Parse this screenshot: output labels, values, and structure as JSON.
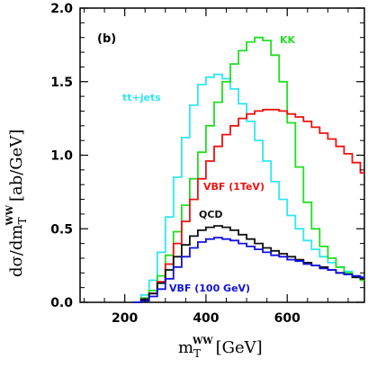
{
  "chart_data": {
    "type": "line",
    "panel_label": "(b)",
    "xlabel": {
      "main": "m",
      "sub": "T",
      "sup": "WW",
      "unit": "[GeV]"
    },
    "ylabel": {
      "prefix": "dσ/dm",
      "sub": "T",
      "sup": "WW",
      "unit": "[ab/GeV]"
    },
    "xlim": [
      90,
      790
    ],
    "ylim": [
      0.0,
      2.0
    ],
    "xticks": [
      200,
      400,
      600
    ],
    "yticks": [
      0.0,
      0.5,
      1.0,
      1.5,
      2.0
    ],
    "ytick_labels": [
      "0.0",
      "0.5",
      "1.0",
      "1.5",
      "2.0"
    ],
    "bin_width": 20,
    "series": [
      {
        "name": "tt+jets",
        "color": "#2fe6f2",
        "x": [
          220,
          240,
          260,
          280,
          300,
          320,
          340,
          360,
          380,
          400,
          420,
          440,
          460,
          480,
          500,
          520,
          540,
          560,
          580,
          600,
          620,
          640,
          660,
          680,
          700,
          720,
          740,
          760,
          780
        ],
        "y": [
          0.0,
          0.05,
          0.15,
          0.34,
          0.58,
          0.85,
          1.12,
          1.34,
          1.48,
          1.53,
          1.55,
          1.52,
          1.45,
          1.35,
          1.23,
          1.1,
          0.96,
          0.82,
          0.7,
          0.59,
          0.5,
          0.42,
          0.36,
          0.31,
          0.27,
          0.24,
          0.21,
          0.18,
          0.16
        ]
      },
      {
        "name": "KK",
        "color": "#22dd22",
        "x": [
          220,
          240,
          260,
          280,
          300,
          320,
          340,
          360,
          380,
          400,
          420,
          440,
          460,
          480,
          500,
          520,
          540,
          560,
          580,
          600,
          620,
          640,
          660,
          680,
          700,
          720,
          740,
          760,
          780
        ],
        "y": [
          0.0,
          0.03,
          0.08,
          0.18,
          0.32,
          0.48,
          0.66,
          0.84,
          1.02,
          1.2,
          1.36,
          1.5,
          1.62,
          1.71,
          1.77,
          1.8,
          1.78,
          1.68,
          1.5,
          1.22,
          0.92,
          0.68,
          0.5,
          0.38,
          0.3,
          0.24,
          0.2,
          0.17,
          0.15
        ]
      },
      {
        "name": "VBF (1TeV)",
        "color": "#ee1111",
        "x": [
          220,
          240,
          260,
          280,
          300,
          320,
          340,
          360,
          380,
          400,
          420,
          440,
          460,
          480,
          500,
          520,
          540,
          560,
          580,
          600,
          620,
          640,
          660,
          680,
          700,
          720,
          740,
          760,
          780
        ],
        "y": [
          0.0,
          0.02,
          0.06,
          0.14,
          0.26,
          0.4,
          0.55,
          0.7,
          0.84,
          0.96,
          1.06,
          1.14,
          1.2,
          1.25,
          1.28,
          1.3,
          1.31,
          1.31,
          1.3,
          1.28,
          1.26,
          1.23,
          1.19,
          1.15,
          1.11,
          1.06,
          1.01,
          0.95,
          0.88
        ]
      },
      {
        "name": "QCD",
        "color": "#111111",
        "x": [
          220,
          240,
          260,
          280,
          300,
          320,
          340,
          360,
          380,
          400,
          420,
          440,
          460,
          480,
          500,
          520,
          540,
          560,
          580,
          600,
          620,
          640,
          660,
          680,
          700,
          720,
          740,
          760,
          780
        ],
        "y": [
          0.0,
          0.02,
          0.06,
          0.13,
          0.22,
          0.31,
          0.39,
          0.45,
          0.49,
          0.51,
          0.52,
          0.51,
          0.49,
          0.46,
          0.43,
          0.4,
          0.37,
          0.35,
          0.33,
          0.31,
          0.29,
          0.27,
          0.25,
          0.24,
          0.22,
          0.2,
          0.19,
          0.17,
          0.16
        ]
      },
      {
        "name": "VBF (100 GeV)",
        "color": "#1111dd",
        "x": [
          220,
          240,
          260,
          280,
          300,
          320,
          340,
          360,
          380,
          400,
          420,
          440,
          460,
          480,
          500,
          520,
          540,
          560,
          580,
          600,
          620,
          640,
          660,
          680,
          700,
          720,
          740,
          760,
          780
        ],
        "y": [
          0.0,
          0.01,
          0.04,
          0.09,
          0.16,
          0.24,
          0.31,
          0.37,
          0.41,
          0.43,
          0.44,
          0.43,
          0.42,
          0.4,
          0.38,
          0.36,
          0.34,
          0.32,
          0.31,
          0.29,
          0.28,
          0.26,
          0.25,
          0.23,
          0.22,
          0.2,
          0.19,
          0.18,
          0.17
        ]
      }
    ],
    "series_labels": [
      "tt+jets",
      "KK",
      "VBF (1TeV)",
      "QCD",
      "VBF (100 GeV)"
    ]
  }
}
